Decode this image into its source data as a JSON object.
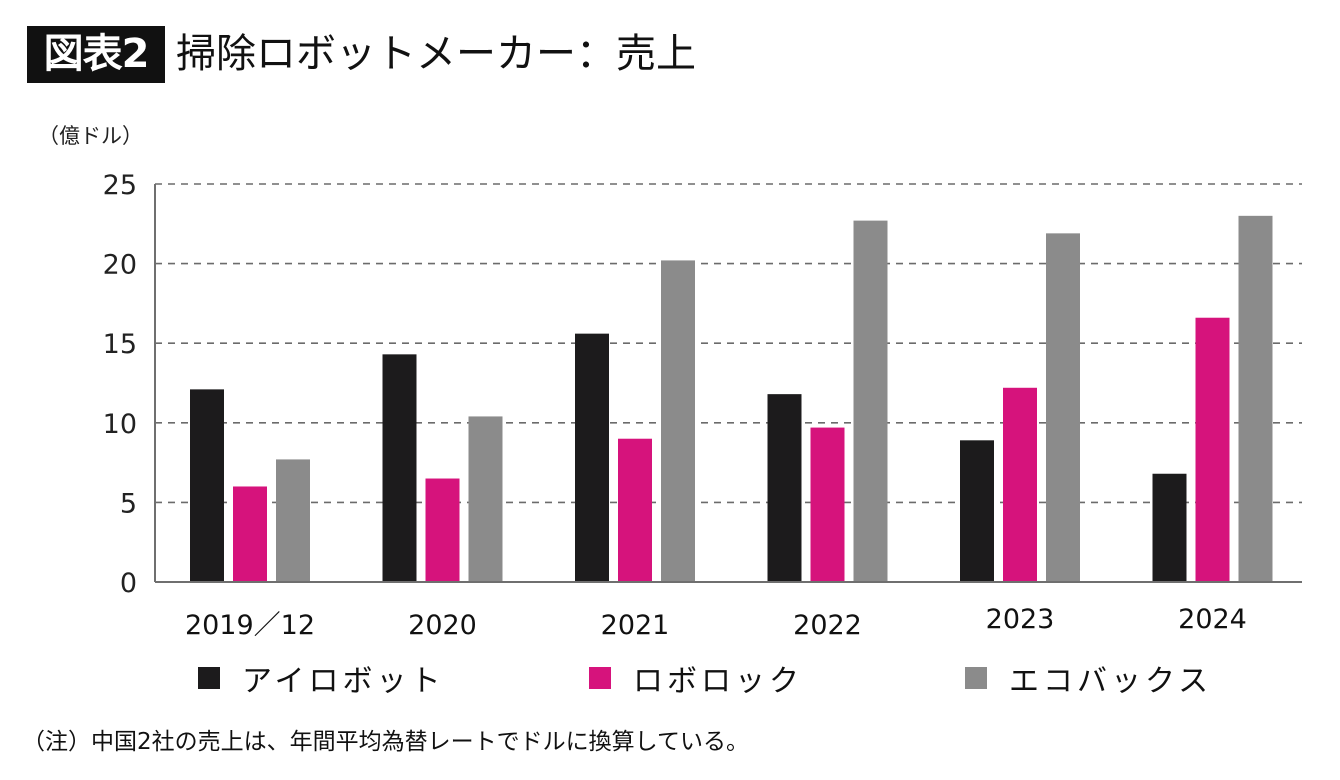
{
  "header": {
    "badge": "図表2",
    "title": "掃除ロボットメーカー：売上"
  },
  "chart_data": {
    "type": "bar",
    "title": "掃除ロボットメーカー：売上",
    "ylabel": "（億ドル）",
    "xlabel": "",
    "ylim": [
      0,
      25
    ],
    "yticks": [
      0,
      5,
      10,
      15,
      20,
      25
    ],
    "grid": true,
    "legend_position": "bottom",
    "categories": [
      "2019／12",
      "2020",
      "2021",
      "2022",
      "2023",
      "2024"
    ],
    "series": [
      {
        "name": "アイロボット",
        "color": "#1c1b1c",
        "values": [
          12.1,
          14.3,
          15.6,
          11.8,
          8.9,
          6.8
        ]
      },
      {
        "name": "ロボロック",
        "color": "#d6137c",
        "values": [
          6.0,
          6.5,
          9.0,
          9.7,
          12.2,
          16.6
        ]
      },
      {
        "name": "エコバックス",
        "color": "#8b8b8b",
        "values": [
          7.7,
          10.4,
          20.2,
          22.7,
          21.9,
          23.0
        ]
      }
    ]
  },
  "footnote": "（注）中国2社の売上は、年間平均為替レートでドルに換算している。"
}
